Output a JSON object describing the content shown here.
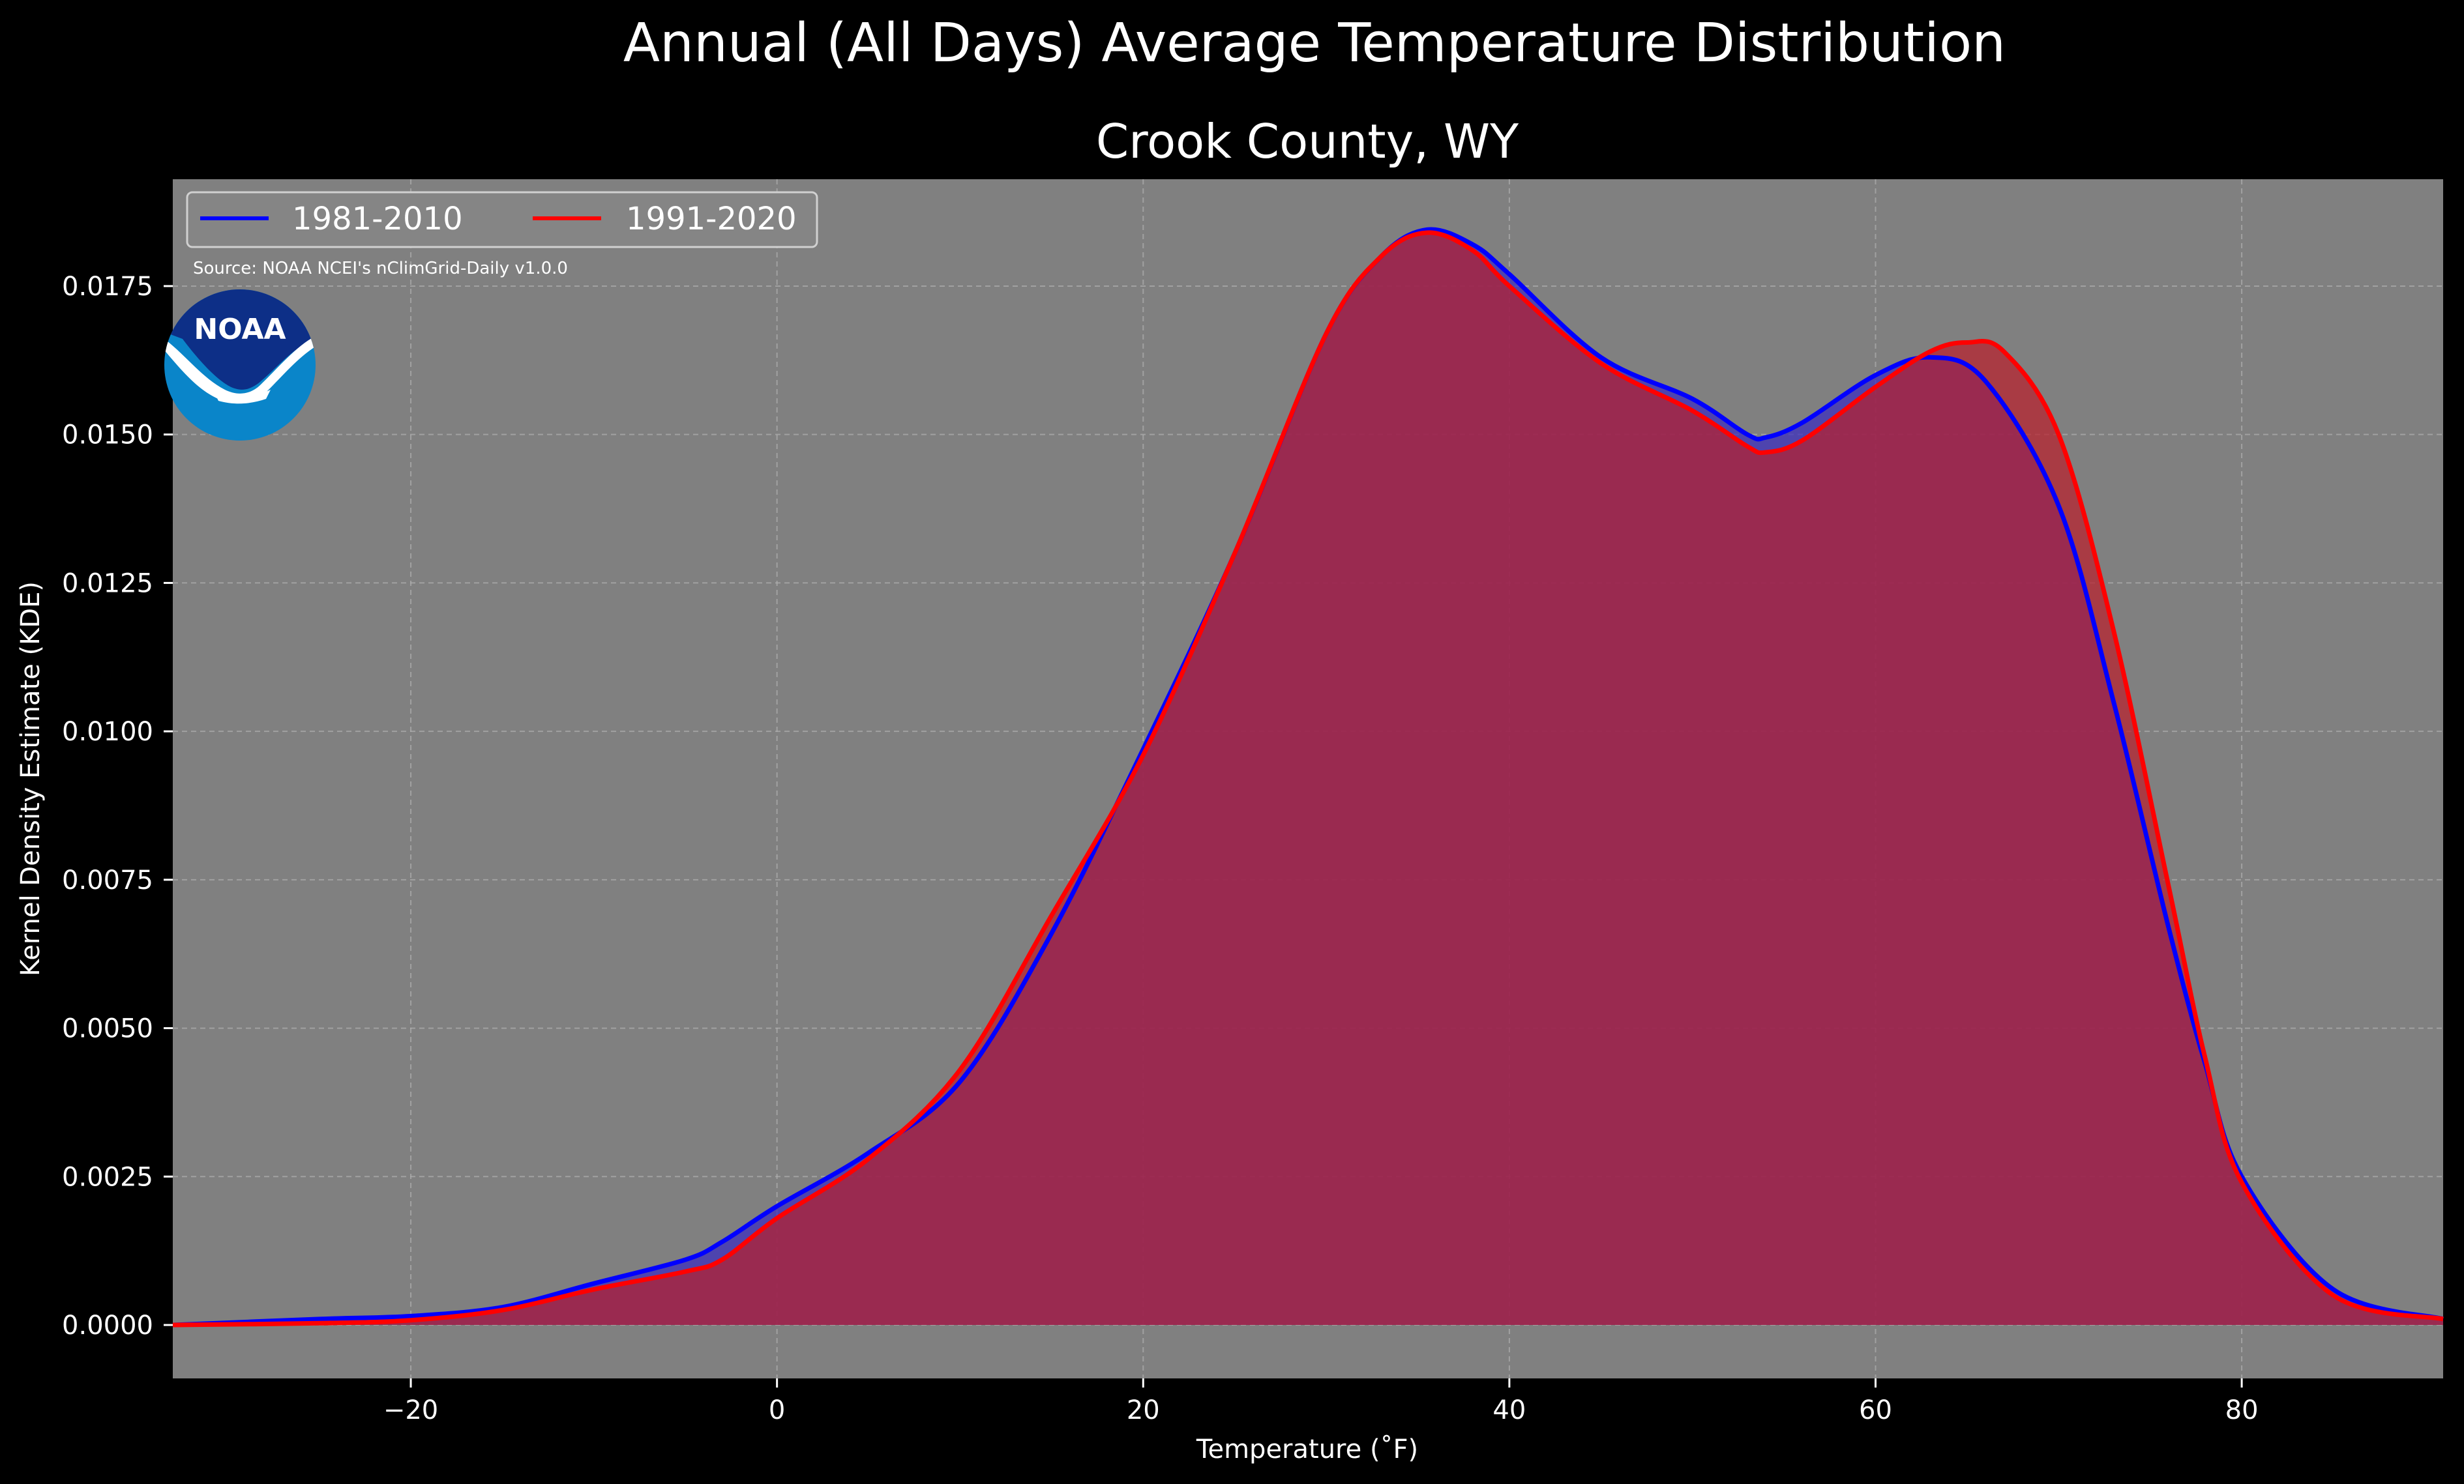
{
  "chart_data": {
    "type": "area",
    "suptitle": "Annual (All Days) Average Temperature Distribution",
    "title": "Crook County, WY",
    "xlabel": "Temperature (˚F)",
    "ylabel": "Kernel Density Estimate (KDE)",
    "xlim": [
      -33,
      91
    ],
    "ylim": [
      -0.0009,
      0.0193
    ],
    "xticks": [
      -20,
      0,
      20,
      40,
      60,
      80
    ],
    "xtick_labels": [
      "−20",
      "0",
      "20",
      "40",
      "60",
      "80"
    ],
    "yticks": [
      0,
      0.0025,
      0.005,
      0.0075,
      0.01,
      0.0125,
      0.015,
      0.0175
    ],
    "ytick_labels": [
      "0.0000",
      "0.0025",
      "0.0050",
      "0.0075",
      "0.0100",
      "0.0125",
      "0.0150",
      "0.0175"
    ],
    "grid": true,
    "legend_position": "top-left",
    "source": "Source: NOAA NCEI's nClimGrid-Daily v1.0.0",
    "logo_text": "NOAA",
    "colors": {
      "figure_background": "#000000",
      "plot_background": "#808080",
      "grid": "#b0b0b0",
      "text": "#ffffff",
      "logo_dark": "#0d2f87",
      "logo_light": "#0a85c9"
    },
    "series": [
      {
        "name": "1981-2010",
        "color": "#0000ff",
        "fill": "#3a2cbf",
        "x": [
          -33,
          -25,
          -20,
          -15,
          -10,
          -5,
          -3,
          0,
          5,
          10,
          15,
          20,
          25,
          30,
          33,
          35.5,
          38,
          40,
          45,
          50,
          53,
          54,
          56,
          60,
          63,
          66,
          70,
          73,
          76,
          78,
          80,
          85,
          91
        ],
        "y": [
          0,
          0.0001,
          0.00015,
          0.0003,
          0.0007,
          0.0011,
          0.0014,
          0.002,
          0.0029,
          0.0041,
          0.0066,
          0.0097,
          0.013,
          0.0167,
          0.018,
          0.01845,
          0.0182,
          0.0177,
          0.0163,
          0.0156,
          0.015,
          0.01495,
          0.0152,
          0.016,
          0.0163,
          0.0159,
          0.0138,
          0.0105,
          0.0067,
          0.0044,
          0.0025,
          0.0006,
          0.0001
        ]
      },
      {
        "name": "1991-2020",
        "color": "#ff0000",
        "fill": "#b8202c",
        "x": [
          -33,
          -25,
          -20,
          -15,
          -10,
          -5,
          -3,
          0,
          5,
          10,
          15,
          20,
          25,
          30,
          33,
          35.5,
          38,
          40,
          45,
          50,
          53,
          54,
          56,
          60,
          63,
          65,
          67,
          70,
          73,
          76,
          78,
          80,
          85,
          91
        ],
        "y": [
          0,
          3e-05,
          8e-05,
          0.00025,
          0.0006,
          0.0009,
          0.0011,
          0.0018,
          0.0028,
          0.0043,
          0.0069,
          0.0096,
          0.013,
          0.0167,
          0.018,
          0.0184,
          0.0181,
          0.0175,
          0.0162,
          0.0154,
          0.0148,
          0.0147,
          0.0149,
          0.0158,
          0.0164,
          0.01655,
          0.0164,
          0.015,
          0.0117,
          0.0074,
          0.0045,
          0.0024,
          0.0005,
          0.0001
        ]
      }
    ]
  }
}
